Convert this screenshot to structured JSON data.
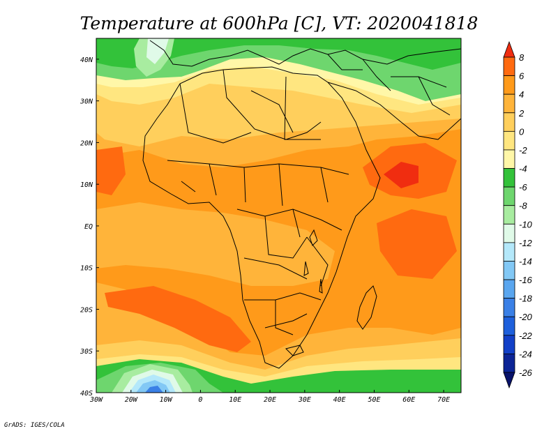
{
  "title": "Temperature at 600hPa [C], VT: 2020041818",
  "credit": "GrADS: IGES/COLA",
  "map": {
    "lon_range": [
      -30,
      75
    ],
    "lat_range": [
      -40,
      45
    ],
    "lon_ticks": [
      {
        "value": -30,
        "label": "30W"
      },
      {
        "value": -20,
        "label": "20W"
      },
      {
        "value": -10,
        "label": "10W"
      },
      {
        "value": 0,
        "label": "0"
      },
      {
        "value": 10,
        "label": "10E"
      },
      {
        "value": 20,
        "label": "20E"
      },
      {
        "value": 30,
        "label": "30E"
      },
      {
        "value": 40,
        "label": "40E"
      },
      {
        "value": 50,
        "label": "50E"
      },
      {
        "value": 60,
        "label": "60E"
      },
      {
        "value": 70,
        "label": "70E"
      }
    ],
    "lat_ticks": [
      {
        "value": 40,
        "label": "40N"
      },
      {
        "value": 30,
        "label": "30N"
      },
      {
        "value": 20,
        "label": "20N"
      },
      {
        "value": 10,
        "label": "10N"
      },
      {
        "value": 0,
        "label": "EQ"
      },
      {
        "value": -10,
        "label": "10S"
      },
      {
        "value": -20,
        "label": "20S"
      },
      {
        "value": -30,
        "label": "30S"
      },
      {
        "value": -40,
        "label": "40S"
      }
    ]
  },
  "colorbar": {
    "levels": [
      "8",
      "6",
      "4",
      "2",
      "0",
      "-2",
      "-4",
      "-6",
      "-8",
      "-10",
      "-12",
      "-14",
      "-16",
      "-18",
      "-20",
      "-22",
      "-24",
      "-26"
    ],
    "colors": [
      "#f02d10",
      "#ff6a10",
      "#ff9a1a",
      "#ffb43a",
      "#ffcf5c",
      "#ffe680",
      "#fff7a8",
      "#33c23a",
      "#6ed66e",
      "#a8eca0",
      "#e0fae8",
      "#b4e8fa",
      "#82c8f5",
      "#5aa6ef",
      "#3a80e6",
      "#1e60dc",
      "#1240c8",
      "#0c2496",
      "#08126a"
    ]
  }
}
